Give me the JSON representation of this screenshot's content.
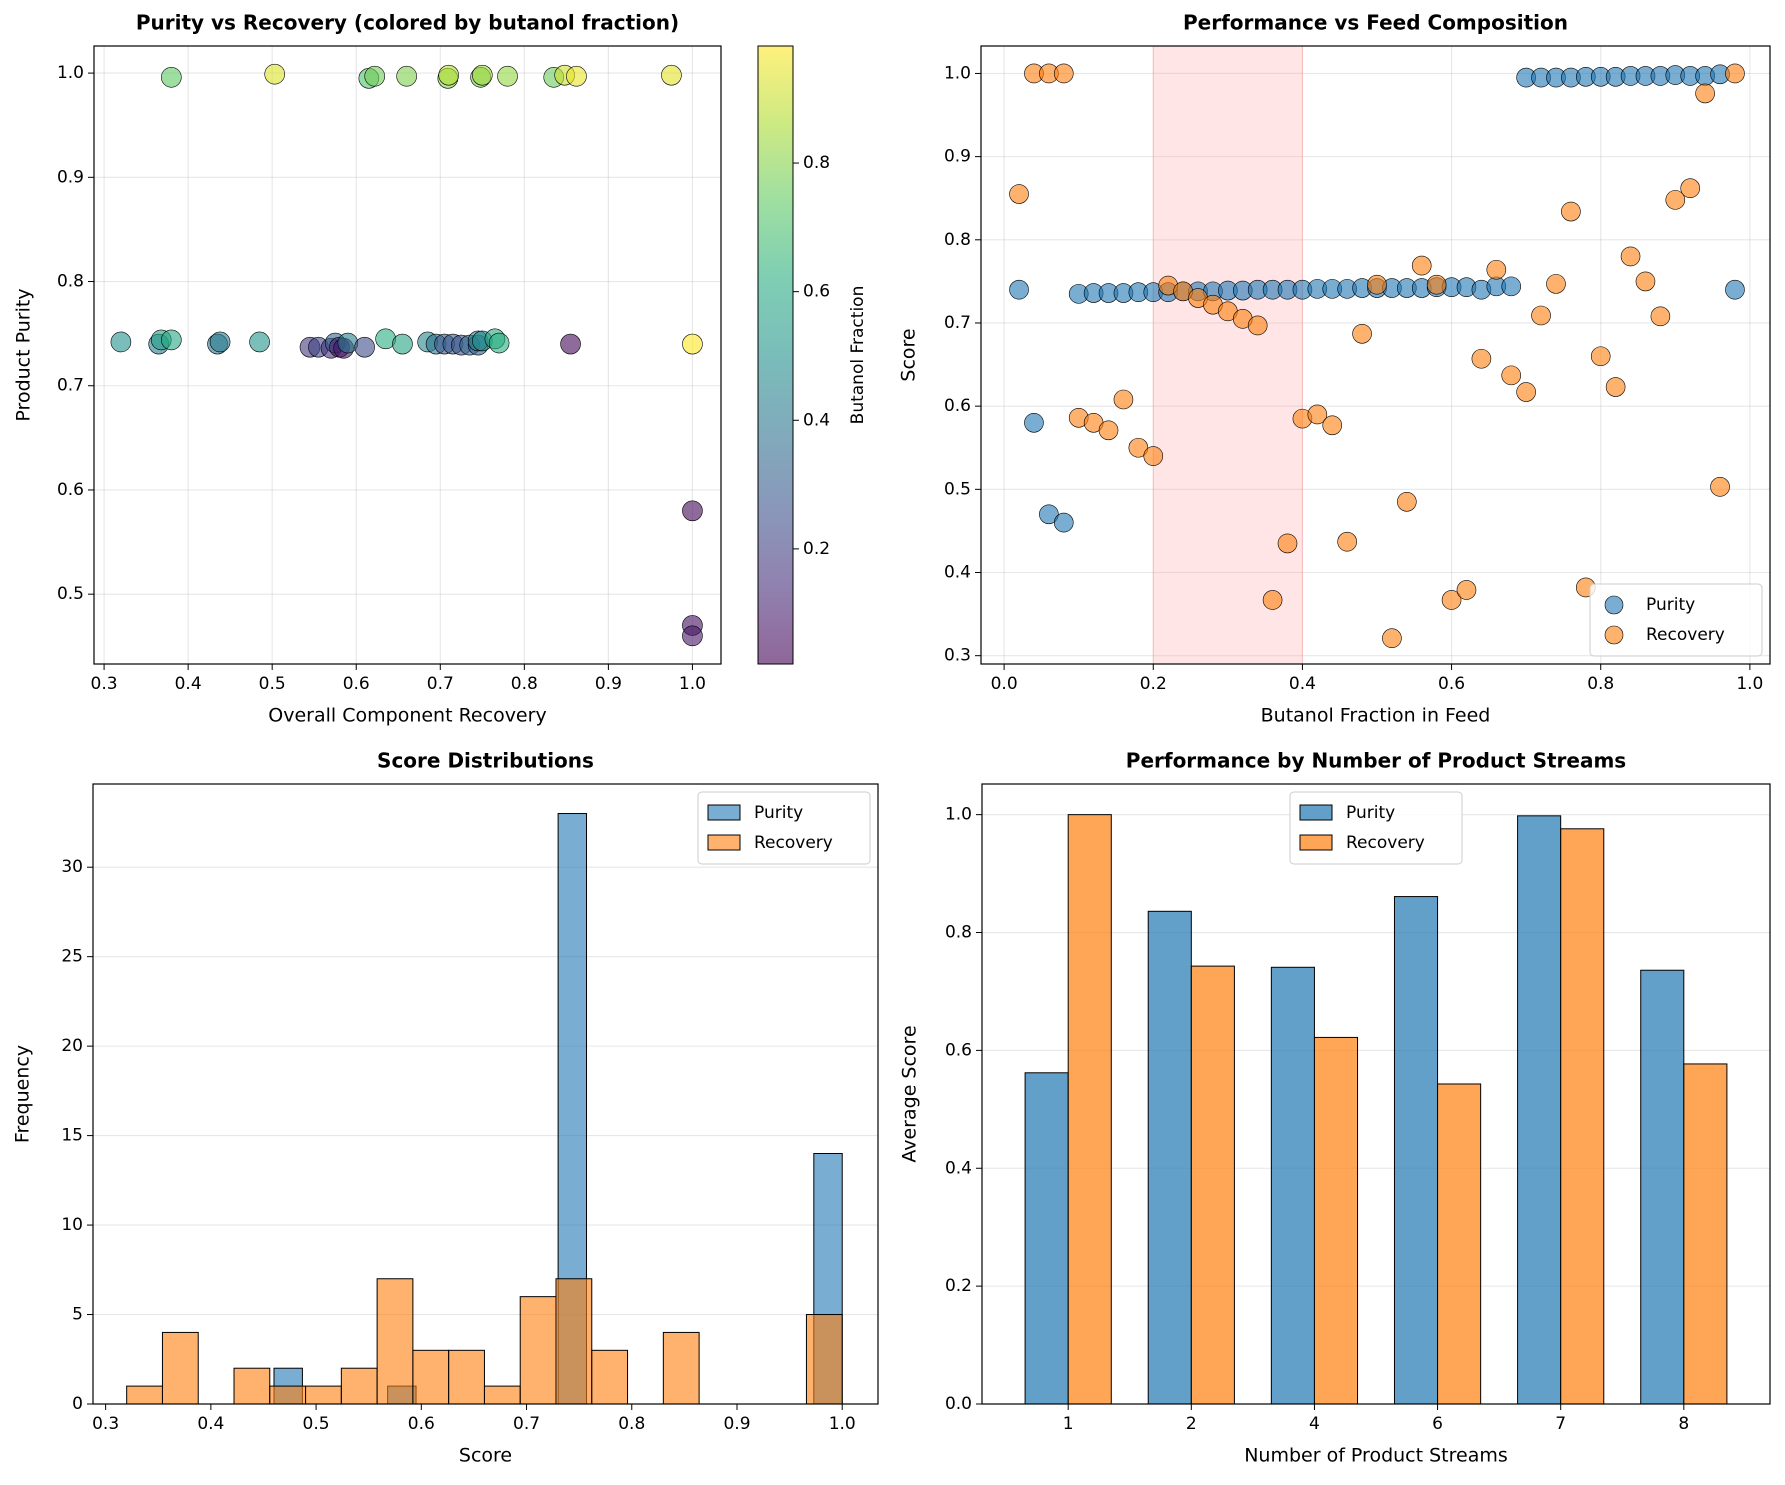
{
  "chart_data": [
    {
      "type": "scatter",
      "title": "Purity vs Recovery (colored by butanol fraction)",
      "xlabel": "Overall Component Recovery",
      "ylabel": "Product Purity",
      "x": [
        0.38,
        0.503,
        0.615,
        0.622,
        0.66,
        0.709,
        0.71,
        0.748,
        0.75,
        0.78,
        0.835,
        0.848,
        0.862,
        0.975,
        0.32,
        0.365,
        0.368,
        0.38,
        0.435,
        0.438,
        0.485,
        0.545,
        0.555,
        0.57,
        0.575,
        0.58,
        0.585,
        0.59,
        0.61,
        0.635,
        0.655,
        0.685,
        0.695,
        0.705,
        0.715,
        0.725,
        0.735,
        0.745,
        0.745,
        0.75,
        0.765,
        0.77,
        0.855,
        1.0,
        1.0,
        1.0,
        1.0
      ],
      "y": [
        0.996,
        0.999,
        0.995,
        0.997,
        0.997,
        0.995,
        0.998,
        0.996,
        0.998,
        0.997,
        0.996,
        0.998,
        0.997,
        0.998,
        0.742,
        0.74,
        0.744,
        0.744,
        0.74,
        0.742,
        0.742,
        0.737,
        0.737,
        0.736,
        0.741,
        0.737,
        0.736,
        0.741,
        0.737,
        0.745,
        0.74,
        0.742,
        0.74,
        0.74,
        0.74,
        0.739,
        0.739,
        0.739,
        0.743,
        0.743,
        0.745,
        0.741,
        0.74,
        0.74,
        0.58,
        0.47,
        0.46
      ],
      "color_values": [
        0.74,
        0.93,
        0.71,
        0.77,
        0.79,
        0.8,
        0.87,
        0.77,
        0.84,
        0.82,
        0.76,
        0.91,
        0.95,
        0.94,
        0.5,
        0.42,
        0.56,
        0.6,
        0.4,
        0.42,
        0.52,
        0.18,
        0.22,
        0.14,
        0.34,
        0.1,
        0.08,
        0.42,
        0.24,
        0.62,
        0.58,
        0.46,
        0.38,
        0.28,
        0.3,
        0.26,
        0.34,
        0.3,
        0.46,
        0.48,
        0.6,
        0.62,
        0.04,
        0.98,
        0.04,
        0.06,
        0.08
      ],
      "colormap": "viridis",
      "colorbar_label": "Butanol Fraction",
      "clim": [
        0.021,
        0.982
      ],
      "cticks": [
        0.2,
        0.4,
        0.6,
        0.8
      ],
      "xlim": [
        0.288,
        1.034
      ],
      "ylim": [
        0.433,
        1.026
      ],
      "xticks": [
        0.3,
        0.4,
        0.5,
        0.6,
        0.7,
        0.8,
        0.9,
        {
          "value": 1.0,
          "label": "1.0"
        }
      ],
      "yticks": [
        0.5,
        0.6,
        0.7,
        0.8,
        0.9,
        {
          "value": 1.0,
          "label": "1.0"
        }
      ],
      "grid": "both"
    },
    {
      "type": "scatter",
      "title": "Performance vs Feed Composition",
      "xlabel": "Butanol Fraction in Feed",
      "ylabel": "Score",
      "x": [
        0.02,
        0.04,
        0.06,
        0.08,
        0.1,
        0.12,
        0.14,
        0.16,
        0.18,
        0.2,
        0.22,
        0.24,
        0.26,
        0.28,
        0.3,
        0.32,
        0.34,
        0.36,
        0.38,
        0.4,
        0.42,
        0.44,
        0.46,
        0.48,
        0.5,
        0.52,
        0.54,
        0.56,
        0.58,
        0.6,
        0.62,
        0.64,
        0.66,
        0.68,
        0.7,
        0.72,
        0.74,
        0.76,
        0.78,
        0.8,
        0.82,
        0.84,
        0.86,
        0.88,
        0.9,
        0.92,
        0.94,
        0.96,
        0.98
      ],
      "series": [
        {
          "name": "Purity",
          "color": "#1f77b4",
          "values": [
            0.74,
            0.58,
            0.47,
            0.46,
            0.735,
            0.736,
            0.736,
            0.736,
            0.737,
            0.737,
            0.737,
            0.738,
            0.738,
            0.738,
            0.739,
            0.739,
            0.74,
            0.74,
            0.74,
            0.74,
            0.741,
            0.741,
            0.741,
            0.742,
            0.742,
            0.742,
            0.742,
            0.742,
            0.743,
            0.743,
            0.743,
            0.74,
            0.744,
            0.744,
            0.995,
            0.995,
            0.995,
            0.995,
            0.996,
            0.996,
            0.996,
            0.997,
            0.997,
            0.997,
            0.998,
            0.997,
            0.997,
            0.999,
            0.74
          ]
        },
        {
          "name": "Recovery",
          "color": "#ff7f0e",
          "values": [
            0.855,
            1.0,
            1.0,
            1.0,
            0.586,
            0.58,
            0.571,
            0.608,
            0.55,
            0.54,
            0.745,
            0.738,
            0.73,
            0.722,
            0.714,
            0.705,
            0.697,
            0.367,
            0.435,
            0.585,
            0.59,
            0.577,
            0.437,
            0.687,
            0.746,
            0.321,
            0.485,
            0.769,
            0.746,
            0.367,
            0.379,
            0.657,
            0.764,
            0.637,
            0.617,
            0.709,
            0.747,
            0.834,
            0.382,
            0.66,
            0.623,
            0.78,
            0.75,
            0.708,
            0.848,
            0.862,
            0.976,
            0.503,
            1.0
          ]
        }
      ],
      "shaded_region": [
        0.2,
        0.4
      ],
      "shade_color": "#ff9999",
      "xlim": [
        -0.031,
        1.027
      ],
      "ylim": [
        0.29,
        1.033
      ],
      "xticks": [
        {
          "value": 0.0,
          "label": "0.0"
        },
        0.2,
        0.4,
        0.6,
        0.8,
        {
          "value": 1.0,
          "label": "1.0"
        }
      ],
      "yticks": [
        0.3,
        0.4,
        0.5,
        0.6,
        0.7,
        0.8,
        0.9,
        {
          "value": 1.0,
          "label": "1.0"
        }
      ],
      "grid": "both",
      "legend": "lower right"
    },
    {
      "type": "histogram",
      "title": "Score Distributions",
      "xlabel": "Score",
      "ylabel": "Frequency",
      "series": [
        {
          "name": "Purity",
          "color": "#1f77b4",
          "bins": [
            0.46,
            0.487,
            0.514,
            0.541,
            0.568,
            0.595,
            0.622,
            0.649,
            0.676,
            0.703,
            0.73,
            0.757,
            0.784,
            0.811,
            0.838,
            0.865,
            0.892,
            0.919,
            0.946,
            0.973,
            1.0
          ],
          "values": [
            2,
            0,
            0,
            0,
            1,
            0,
            0,
            0,
            0,
            0,
            33,
            0,
            0,
            0,
            0,
            0,
            0,
            0,
            0,
            14
          ]
        },
        {
          "name": "Recovery",
          "color": "#ff7f0e",
          "bins": [
            0.32,
            0.354,
            0.388,
            0.422,
            0.456,
            0.49,
            0.524,
            0.558,
            0.592,
            0.626,
            0.66,
            0.694,
            0.728,
            0.762,
            0.796,
            0.83,
            0.864,
            0.898,
            0.932,
            0.966,
            1.0
          ],
          "values": [
            1,
            4,
            0,
            2,
            1,
            1,
            2,
            7,
            3,
            3,
            1,
            6,
            7,
            3,
            0,
            4,
            0,
            0,
            0,
            5
          ]
        }
      ],
      "xlim": [
        0.288,
        1.034
      ],
      "ylim": [
        0,
        34.65
      ],
      "xticks": [
        0.3,
        0.4,
        0.5,
        0.6,
        0.7,
        0.8,
        0.9,
        {
          "value": 1.0,
          "label": "1.0"
        }
      ],
      "yticks": [
        0,
        5,
        10,
        15,
        20,
        25,
        30
      ],
      "grid": "y",
      "legend": "upper right"
    },
    {
      "type": "bar",
      "title": "Performance by Number of Product Streams",
      "xlabel": "Number of Product Streams",
      "ylabel": "Average Score",
      "categories": [
        "1",
        "2",
        "4",
        "6",
        "7",
        "8"
      ],
      "series": [
        {
          "name": "Purity",
          "color": "#1f77b4",
          "values": [
            0.562,
            0.836,
            0.741,
            0.861,
            0.998,
            0.736
          ]
        },
        {
          "name": "Recovery",
          "color": "#ff7f0e",
          "values": [
            1.0,
            0.743,
            0.622,
            0.543,
            0.976,
            0.577
          ]
        }
      ],
      "ylim": [
        0,
        1.052
      ],
      "yticks": [
        {
          "value": 0,
          "label": "0.0"
        },
        0.2,
        0.4,
        0.6,
        0.8,
        {
          "value": 1.0,
          "label": "1.0"
        }
      ],
      "grid": "y",
      "legend": "upper center"
    }
  ]
}
